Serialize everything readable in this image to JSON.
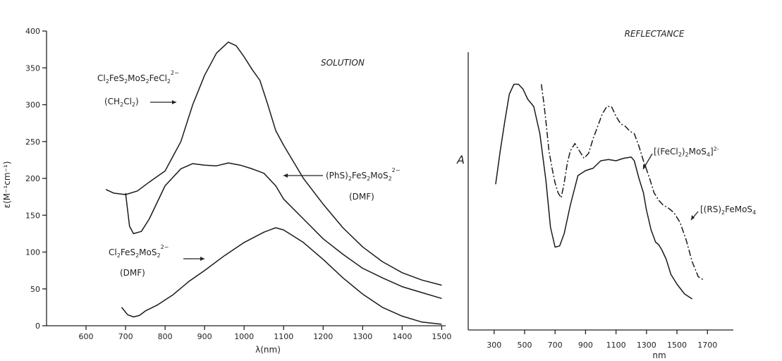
{
  "chart_data": [
    {
      "type": "line",
      "title": "SOLUTION",
      "xlabel": "λ(nm)",
      "ylabel": "ε(M⁻¹cm⁻¹)",
      "xlim": [
        500,
        1510
      ],
      "ylim": [
        0,
        400
      ],
      "x_ticks": [
        600,
        700,
        800,
        900,
        1000,
        1100,
        1200,
        1300,
        1400,
        1500
      ],
      "y_ticks": [
        0,
        50,
        100,
        150,
        200,
        250,
        300,
        350,
        400
      ],
      "series": [
        {
          "name": "Cl2FeS2MoS2FeCl2 2- (CH2Cl2)",
          "x": [
            650,
            670,
            700,
            730,
            760,
            800,
            840,
            870,
            900,
            930,
            960,
            980,
            1000,
            1020,
            1040,
            1060,
            1080,
            1100,
            1150,
            1200,
            1250,
            1300,
            1350,
            1400,
            1450,
            1500
          ],
          "y": [
            185,
            180,
            178,
            183,
            195,
            210,
            250,
            300,
            340,
            370,
            385,
            380,
            365,
            348,
            333,
            300,
            265,
            245,
            200,
            165,
            133,
            107,
            87,
            72,
            62,
            55
          ]
        },
        {
          "name": "(PhS)2FeS2MoS2 2- (DMF)",
          "x": [
            700,
            710,
            720,
            740,
            760,
            800,
            840,
            870,
            900,
            930,
            960,
            990,
            1020,
            1050,
            1080,
            1100,
            1150,
            1200,
            1250,
            1300,
            1350,
            1400,
            1450,
            1500
          ],
          "y": [
            180,
            135,
            125,
            128,
            145,
            190,
            213,
            220,
            218,
            217,
            221,
            218,
            213,
            207,
            190,
            172,
            145,
            118,
            97,
            78,
            65,
            53,
            45,
            37
          ]
        },
        {
          "name": "Cl2FeS2MoS2 2- (DMF)",
          "x": [
            690,
            705,
            720,
            735,
            750,
            780,
            820,
            860,
            900,
            950,
            1000,
            1050,
            1080,
            1100,
            1150,
            1200,
            1250,
            1300,
            1350,
            1400,
            1450,
            1500
          ],
          "y": [
            25,
            15,
            12,
            14,
            20,
            28,
            42,
            60,
            75,
            95,
            113,
            127,
            133,
            130,
            113,
            90,
            65,
            43,
            25,
            13,
            5,
            2
          ]
        }
      ],
      "annotations": [
        {
          "lines": [
            "Cl2FeS2MoS2FeCl2 2−",
            "(CH2Cl2)"
          ]
        },
        {
          "lines": [
            "(PhS)2FeS2MoS2 2−",
            "(DMF)"
          ]
        },
        {
          "lines": [
            "Cl2FeS2MoS2 2−",
            "(DMF)"
          ]
        }
      ]
    },
    {
      "type": "line",
      "title": "REFLECTANCE",
      "xlabel": "nm",
      "ylabel": "A",
      "xlim": [
        130,
        1870
      ],
      "ylim": [
        0,
        1
      ],
      "x_ticks": [
        300,
        500,
        700,
        900,
        1100,
        1300,
        1500,
        1700
      ],
      "series": [
        {
          "name": "[(FeCl2)2MoS4]2-",
          "style": "solid",
          "x": [
            310,
            340,
            370,
            400,
            430,
            460,
            490,
            520,
            560,
            600,
            640,
            670,
            700,
            730,
            760,
            800,
            850,
            900,
            950,
            1000,
            1050,
            1100,
            1150,
            1200,
            1220,
            1250,
            1280,
            1300,
            1330,
            1360,
            1380,
            1400,
            1430,
            1460,
            1500,
            1550,
            1600
          ],
          "y": [
            0.465,
            0.6,
            0.72,
            0.83,
            0.87,
            0.87,
            0.85,
            0.81,
            0.78,
            0.67,
            0.48,
            0.29,
            0.21,
            0.215,
            0.265,
            0.38,
            0.5,
            0.52,
            0.53,
            0.56,
            0.565,
            0.56,
            0.57,
            0.575,
            0.56,
            0.49,
            0.43,
            0.36,
            0.28,
            0.23,
            0.22,
            0.2,
            0.16,
            0.1,
            0.06,
            0.02,
            0.0
          ]
        },
        {
          "name": "[(RS)2FeMoS4",
          "style": "dash-dot",
          "x": [
            610,
            625,
            640,
            660,
            680,
            700,
            720,
            740,
            760,
            780,
            800,
            830,
            860,
            890,
            920,
            950,
            980,
            1010,
            1040,
            1070,
            1100,
            1130,
            1160,
            1190,
            1220,
            1250,
            1280,
            1320,
            1350,
            1380,
            1410,
            1440,
            1480,
            1520,
            1560,
            1600,
            1640,
            1680
          ],
          "y": [
            0.87,
            0.8,
            0.72,
            0.6,
            0.53,
            0.47,
            0.43,
            0.41,
            0.47,
            0.55,
            0.6,
            0.63,
            0.6,
            0.57,
            0.59,
            0.65,
            0.7,
            0.75,
            0.78,
            0.78,
            0.74,
            0.71,
            0.7,
            0.68,
            0.67,
            0.62,
            0.56,
            0.49,
            0.43,
            0.4,
            0.38,
            0.37,
            0.35,
            0.31,
            0.24,
            0.15,
            0.09,
            0.075
          ]
        }
      ],
      "annotations": [
        {
          "lines": [
            "[(FeCl2)2MoS4]2-"
          ]
        },
        {
          "lines": [
            "[(RS)2FeMoS4"
          ]
        }
      ]
    }
  ]
}
